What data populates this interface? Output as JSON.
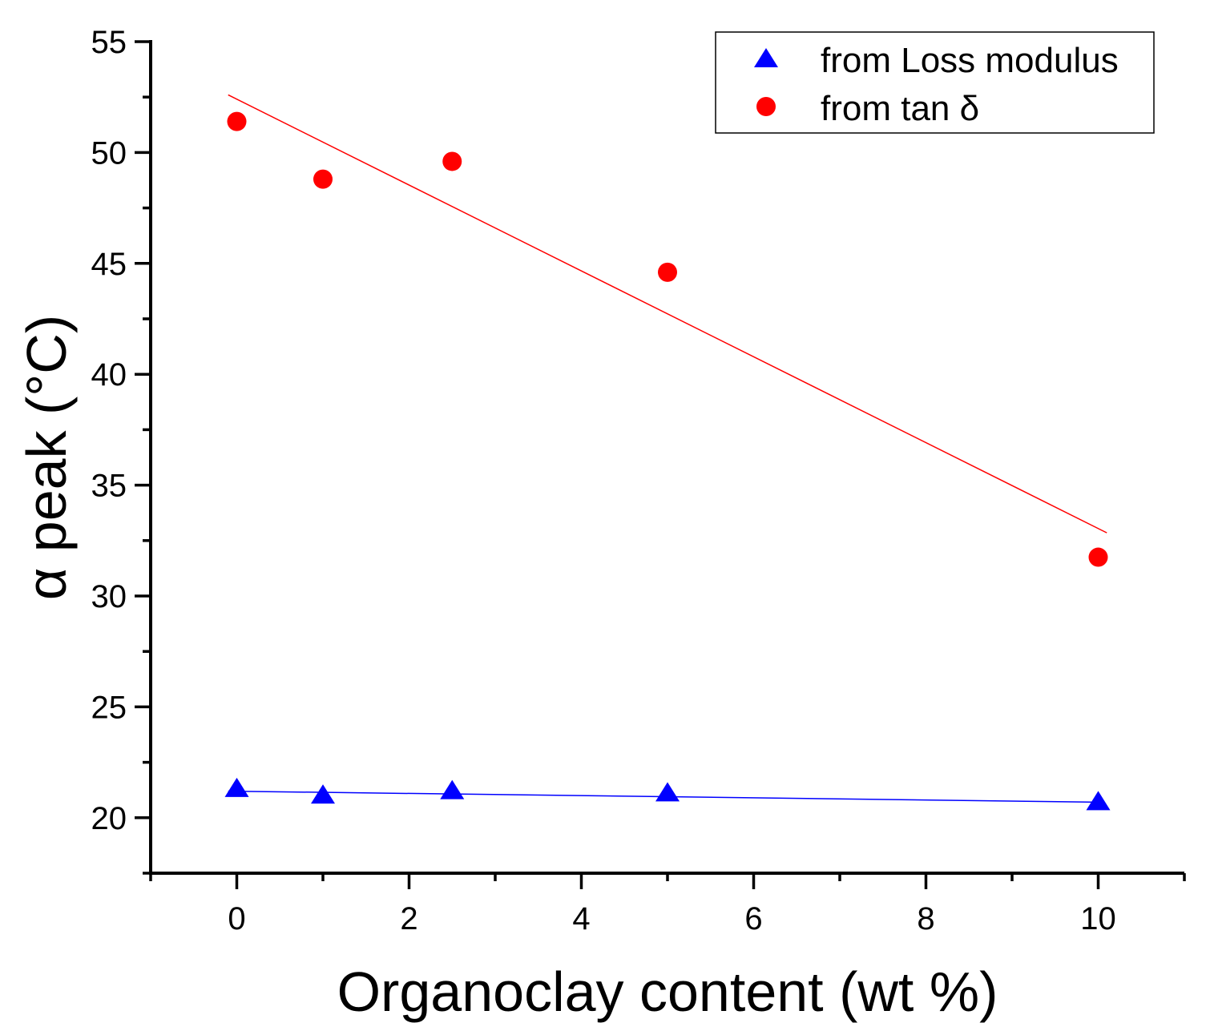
{
  "chart_data": {
    "type": "scatter",
    "title": "",
    "xlabel": "Organoclay content (wt %)",
    "ylabel": "α peak (°C)",
    "xlim": [
      -1,
      11
    ],
    "ylim": [
      17.5,
      55
    ],
    "xticks": [
      0,
      2,
      4,
      6,
      8,
      10
    ],
    "yticks": [
      20,
      25,
      30,
      35,
      40,
      45,
      50,
      55
    ],
    "grid": false,
    "legend_position": "top-right",
    "series": [
      {
        "name": "from Loss modulus",
        "marker": "triangle",
        "color": "#0000ff",
        "x": [
          0,
          1,
          2.5,
          5,
          10
        ],
        "y": [
          21.3,
          21.0,
          21.2,
          21.1,
          20.7
        ],
        "fit": {
          "x": [
            -0.1,
            10
          ],
          "y": [
            21.2,
            20.7
          ]
        }
      },
      {
        "name": "from tan δ",
        "marker": "circle",
        "color": "#ff0000",
        "x": [
          0,
          1,
          2.5,
          5,
          10
        ],
        "y": [
          51.4,
          48.8,
          49.6,
          44.6,
          31.75
        ],
        "fit": {
          "x": [
            -0.1,
            10.1
          ],
          "y": [
            52.6,
            32.85
          ]
        }
      }
    ]
  }
}
